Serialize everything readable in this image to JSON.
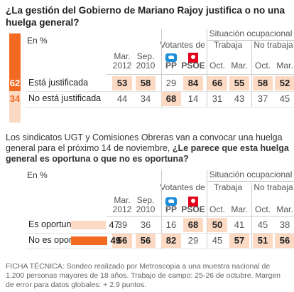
{
  "section1": {
    "title": "¿La gestión del Gobierno de Mariano Rajoy justifica o no una huelga general?",
    "unit": "En %",
    "group_votantes": "Votantes de",
    "group_situacion": "Situación ocupacional",
    "subgroups": [
      "Trabaja",
      "No trabaja"
    ],
    "columns": [
      [
        "Mar.",
        "2012"
      ],
      [
        "Sep.",
        "2010"
      ],
      [
        "PP"
      ],
      [
        "PSOE"
      ],
      [
        "Oct."
      ],
      [
        "Mar."
      ],
      [
        "Oct."
      ],
      [
        "Mar."
      ]
    ],
    "rows": [
      {
        "label": "Está justificada",
        "current": 62,
        "values": [
          53,
          58,
          29,
          84,
          66,
          55,
          58,
          52
        ]
      },
      {
        "label": "No está justificada",
        "current": 34,
        "values": [
          44,
          34,
          68,
          14,
          31,
          43,
          37,
          45
        ]
      }
    ]
  },
  "section2": {
    "intro": "Los sindicatos UGT y Comisiones Obreras van a convocar una huelga general para el próximo 14 de noviembre,",
    "question": "¿Le parece que esta huelga general es oportuna o que no es oportuna?",
    "unit": "En %",
    "group_votantes": "Votantes de",
    "group_situacion": "Situación ocupacional",
    "subgroups": [
      "Trabaja",
      "No trabaja"
    ],
    "columns": [
      [
        "Mar.",
        "2012"
      ],
      [
        "Sep.",
        "2010"
      ],
      [
        "PP"
      ],
      [
        "PSOE"
      ],
      [
        "Oct."
      ],
      [
        "Mar."
      ],
      [
        "Oct."
      ],
      [
        "Mar."
      ]
    ],
    "rows": [
      {
        "label": "Es oportuna",
        "current": 47,
        "values": [
          39,
          36,
          16,
          68,
          50,
          41,
          45,
          38
        ]
      },
      {
        "label": "No es oportuna",
        "current": 49,
        "values": [
          56,
          56,
          82,
          29,
          45,
          57,
          51,
          56
        ]
      }
    ]
  },
  "footnote": "FICHA TÉCNICA: Sondeo realizado por Metroscopia a una muestra nacional de 1.200 personas mayores de 18 años. Trabajo de campo: 25-26 de octubre. Margen de error para datos globales: + 2.9 puntos."
}
